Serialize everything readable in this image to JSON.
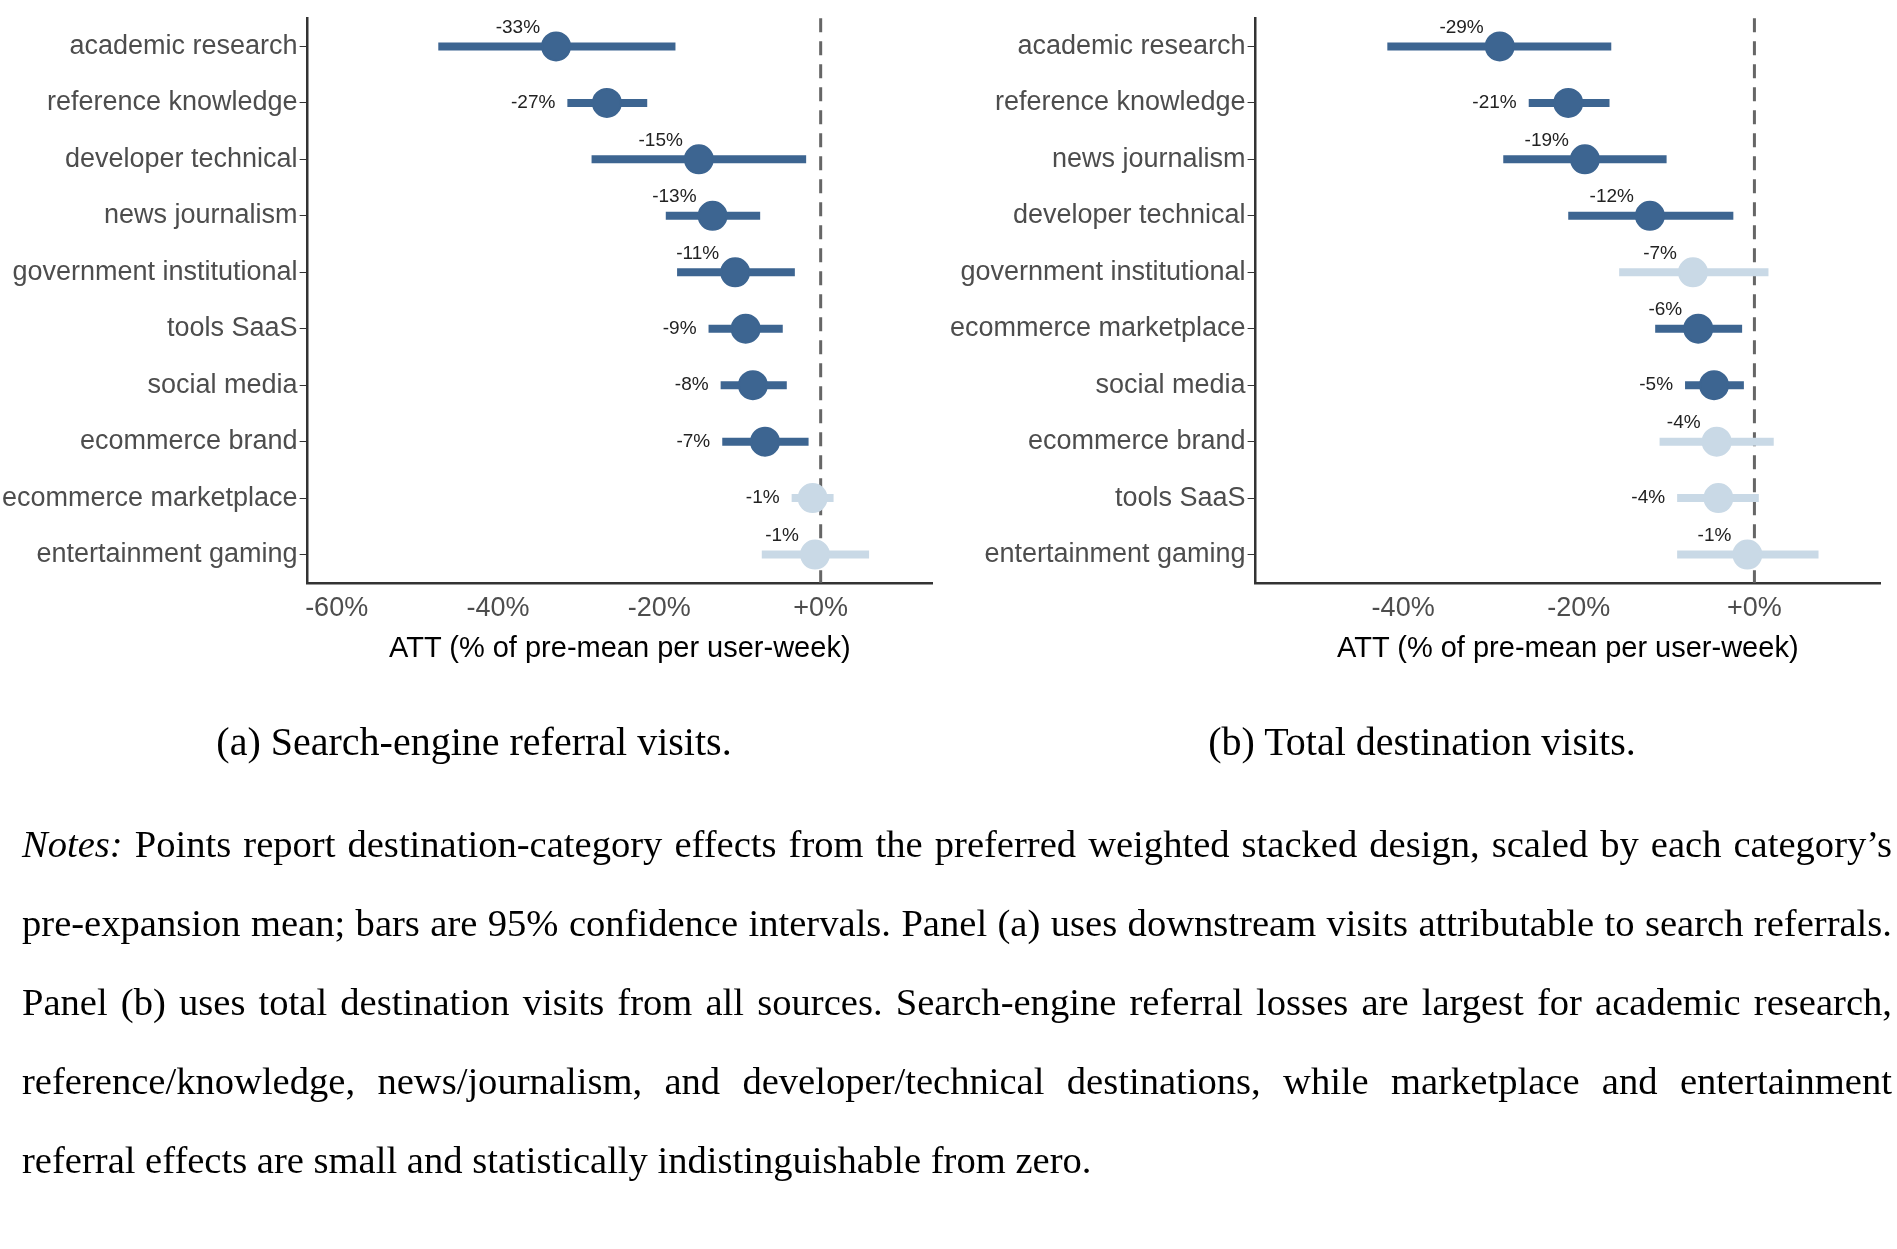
{
  "chart_data": [
    {
      "type": "scatter",
      "orientation": "horizontal",
      "title": "(a) Search-engine referral visits.",
      "xlabel": "ATT (% of pre-mean per user-week)",
      "categories": [
        "academic research",
        "reference knowledge",
        "developer technical",
        "news journalism",
        "government institutional",
        "tools SaaS",
        "social media",
        "ecommerce brand",
        "ecommerce marketplace",
        "entertainment gaming"
      ],
      "values": [
        -32.8,
        -26.5,
        -15.1,
        -13.4,
        -10.6,
        -9.3,
        -8.4,
        -6.9,
        -1.0,
        -0.7
      ],
      "errors": [
        [
          -47.4,
          -18.0
        ],
        [
          -31.4,
          -21.5
        ],
        [
          -28.4,
          -1.8
        ],
        [
          -19.2,
          -7.5
        ],
        [
          -17.8,
          -3.2
        ],
        [
          -13.9,
          -4.7
        ],
        [
          -12.4,
          -4.2
        ],
        [
          -12.2,
          -1.5
        ],
        [
          -3.6,
          1.6
        ],
        [
          -7.3,
          6.0
        ]
      ],
      "value_labels": [
        "-33%",
        "-27%",
        "-15%",
        "-13%",
        "-11%",
        "-9%",
        "-8%",
        "-7%",
        "-1%",
        "-1%"
      ],
      "colors": [
        "#3d6591",
        "#3d6591",
        "#3d6591",
        "#3d6591",
        "#3d6591",
        "#3d6591",
        "#3d6591",
        "#3d6591",
        "#c9d9e6",
        "#c9d9e6"
      ],
      "xlim": [
        -63.6,
        13.8
      ],
      "xticks": [
        {
          "value": -60,
          "label": "-60%"
        },
        {
          "value": -40,
          "label": "-40%"
        },
        {
          "value": -20,
          "label": "-20%"
        },
        {
          "value": 0,
          "label": "+0%"
        }
      ],
      "ref_lines": [
        {
          "axis": "x",
          "value": 0,
          "color": "#666666",
          "line_style": "dashed"
        }
      ],
      "grid": false,
      "legend": false,
      "marker": "circle"
    },
    {
      "type": "scatter",
      "orientation": "horizontal",
      "title": "(b) Total destination visits.",
      "xlabel": "ATT (% of pre-mean per user-week)",
      "categories": [
        "academic research",
        "reference knowledge",
        "news journalism",
        "developer technical",
        "government institutional",
        "ecommerce marketplace",
        "social media",
        "ecommerce brand",
        "tools SaaS",
        "entertainment gaming"
      ],
      "values": [
        -29.0,
        -21.2,
        -19.3,
        -11.9,
        -7.0,
        -6.4,
        -4.6,
        -4.3,
        -4.1,
        -0.8
      ],
      "errors": [
        [
          -41.8,
          -16.3
        ],
        [
          -25.7,
          -16.5
        ],
        [
          -28.6,
          -10.0
        ],
        [
          -21.2,
          -2.4
        ],
        [
          -15.4,
          1.6
        ],
        [
          -11.3,
          -1.4
        ],
        [
          -7.9,
          -1.2
        ],
        [
          -10.8,
          2.2
        ],
        [
          -8.8,
          0.5
        ],
        [
          -8.8,
          7.3
        ]
      ],
      "value_labels": [
        "-29%",
        "-21%",
        "-19%",
        "-12%",
        "-7%",
        "-6%",
        "-5%",
        "-4%",
        "-4%",
        "-1%"
      ],
      "colors": [
        "#3d6591",
        "#3d6591",
        "#3d6591",
        "#3d6591",
        "#c9d9e6",
        "#3d6591",
        "#3d6591",
        "#c9d9e6",
        "#c9d9e6",
        "#c9d9e6"
      ],
      "xlim": [
        -56.8,
        14.3
      ],
      "xticks": [
        {
          "value": -40,
          "label": "-40%"
        },
        {
          "value": -20,
          "label": "-20%"
        },
        {
          "value": 0,
          "label": "+0%"
        }
      ],
      "ref_lines": [
        {
          "axis": "x",
          "value": 0,
          "color": "#666666",
          "line_style": "dashed"
        }
      ],
      "grid": false,
      "legend": false,
      "marker": "circle",
      "annotations": [
        "Notes:",
        "Points report destination-category effects from the preferred weighted stacked design, scaled by each category’s pre-expansion mean; bars are 95% confidence intervals.  Panel (a) uses downstream visits attributable to search referrals.  Panel (b) uses total destination visits from all sources.  Search-engine referral losses are largest for academic research, reference/knowledge, news/journalism, and developer/technical destinations, while marketplace and entertainment referral effects are small and statistically indistinguishable from zero."
      ]
    }
  ]
}
